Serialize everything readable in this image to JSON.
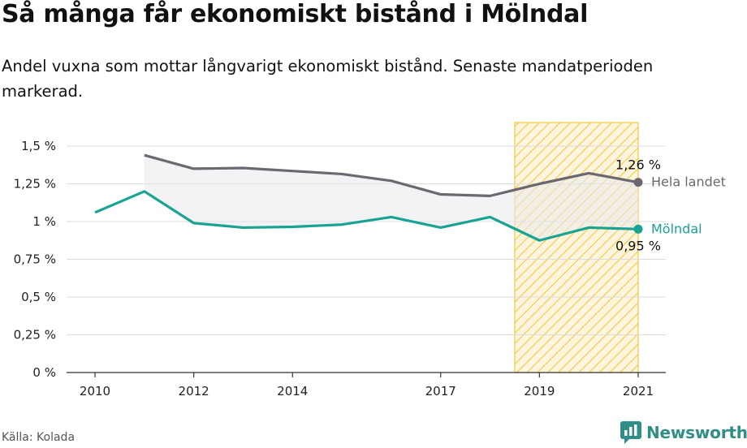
{
  "title": "Så många får ekonomiskt bistånd i Mölndal",
  "subtitle": "Andel vuxna som mottar långvarigt ekonomiskt bistånd. Senaste mandatperioden markerad.",
  "source": "Källa: Kolada",
  "brand": {
    "name": "Newsworthy",
    "icon": "newsworthy-logo-icon",
    "color": "#2f8f86"
  },
  "chart_data": {
    "type": "line",
    "ylim": [
      0,
      1.5
    ],
    "xlim": [
      2009.9,
      2021.6
    ],
    "y_ticks": [
      {
        "value": 0,
        "label": "0 %"
      },
      {
        "value": 0.25,
        "label": "0,25 %"
      },
      {
        "value": 0.5,
        "label": "0,5 %"
      },
      {
        "value": 0.75,
        "label": "0,75 %"
      },
      {
        "value": 1,
        "label": "1 %"
      },
      {
        "value": 1.25,
        "label": "1,25 %"
      },
      {
        "value": 1.5,
        "label": "1,5 %"
      }
    ],
    "x_ticks": [
      {
        "value": 2010,
        "label": "2010"
      },
      {
        "value": 2012,
        "label": "2012"
      },
      {
        "value": 2014,
        "label": "2014"
      },
      {
        "value": 2017,
        "label": "2017"
      },
      {
        "value": 2019,
        "label": "2019"
      },
      {
        "value": 2021,
        "label": "2021"
      }
    ],
    "grid": "horizontal",
    "highlight_period": [
      2018.5,
      2021
    ],
    "highlight_color": "#f5c842",
    "series": [
      {
        "name": "Hela landet",
        "color": "#6b6870",
        "end_label": "1,26 %",
        "points": [
          [
            2011,
            1.44
          ],
          [
            2012,
            1.35
          ],
          [
            2013,
            1.355
          ],
          [
            2014,
            1.335
          ],
          [
            2015,
            1.315
          ],
          [
            2016,
            1.27
          ],
          [
            2017,
            1.18
          ],
          [
            2018,
            1.17
          ],
          [
            2019,
            1.25
          ],
          [
            2020,
            1.32
          ],
          [
            2021,
            1.26
          ]
        ]
      },
      {
        "name": "Mölndal",
        "color": "#19a393",
        "end_label": "0,95 %",
        "points": [
          [
            2010,
            1.06
          ],
          [
            2011,
            1.2
          ],
          [
            2012,
            0.99
          ],
          [
            2013,
            0.96
          ],
          [
            2014,
            0.965
          ],
          [
            2015,
            0.98
          ],
          [
            2016,
            1.03
          ],
          [
            2017,
            0.96
          ],
          [
            2018,
            1.03
          ],
          [
            2019,
            0.875
          ],
          [
            2020,
            0.96
          ],
          [
            2021,
            0.95
          ]
        ]
      }
    ]
  }
}
